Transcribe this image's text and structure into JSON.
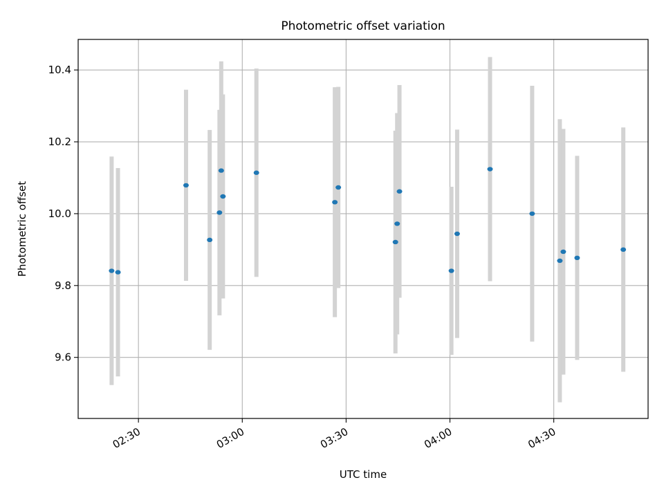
{
  "chart_data": {
    "type": "scatter",
    "title": "Photometric offset variation",
    "xlabel": "UTC time",
    "ylabel": "Photometric offset",
    "xlim": [
      "02:12:35",
      "04:57:15"
    ],
    "ylim": [
      9.43,
      10.485
    ],
    "x_ticks": [
      "02:30",
      "03:00",
      "03:30",
      "04:00",
      "04:30"
    ],
    "y_ticks": [
      "9.6",
      "9.8",
      "10.0",
      "10.2",
      "10.4"
    ],
    "grid": true,
    "points": [
      {
        "x": "02:22:15",
        "y": 9.841,
        "ylow": 9.523,
        "yhigh": 10.159
      },
      {
        "x": "02:24:05",
        "y": 9.837,
        "ylow": 9.547,
        "yhigh": 10.127
      },
      {
        "x": "02:43:45",
        "y": 10.079,
        "ylow": 9.813,
        "yhigh": 10.345
      },
      {
        "x": "02:50:35",
        "y": 9.927,
        "ylow": 9.621,
        "yhigh": 10.233
      },
      {
        "x": "02:53:25",
        "y": 10.003,
        "ylow": 9.717,
        "yhigh": 10.289
      },
      {
        "x": "02:53:55",
        "y": 10.12,
        "ylow": 9.816,
        "yhigh": 10.424
      },
      {
        "x": "02:54:25",
        "y": 10.048,
        "ylow": 9.764,
        "yhigh": 10.332
      },
      {
        "x": "03:04:05",
        "y": 10.114,
        "ylow": 9.824,
        "yhigh": 10.404
      },
      {
        "x": "03:26:45",
        "y": 10.032,
        "ylow": 9.712,
        "yhigh": 10.352
      },
      {
        "x": "03:27:45",
        "y": 10.073,
        "ylow": 9.793,
        "yhigh": 10.353
      },
      {
        "x": "03:44:15",
        "y": 9.921,
        "ylow": 9.611,
        "yhigh": 10.231
      },
      {
        "x": "03:44:45",
        "y": 9.972,
        "ylow": 9.664,
        "yhigh": 10.28
      },
      {
        "x": "03:45:25",
        "y": 10.062,
        "ylow": 9.766,
        "yhigh": 10.358
      },
      {
        "x": "04:00:25",
        "y": 9.841,
        "ylow": 9.607,
        "yhigh": 10.075
      },
      {
        "x": "04:02:05",
        "y": 9.944,
        "ylow": 9.654,
        "yhigh": 10.234
      },
      {
        "x": "04:11:35",
        "y": 10.124,
        "ylow": 9.812,
        "yhigh": 10.436
      },
      {
        "x": "04:23:45",
        "y": 10.0,
        "ylow": 9.644,
        "yhigh": 10.356
      },
      {
        "x": "04:31:45",
        "y": 9.869,
        "ylow": 9.475,
        "yhigh": 10.263
      },
      {
        "x": "04:32:45",
        "y": 9.894,
        "ylow": 9.552,
        "yhigh": 10.236
      },
      {
        "x": "04:36:45",
        "y": 9.877,
        "ylow": 9.593,
        "yhigh": 10.161
      },
      {
        "x": "04:50:05",
        "y": 9.9,
        "ylow": 9.56,
        "yhigh": 10.24
      }
    ]
  }
}
